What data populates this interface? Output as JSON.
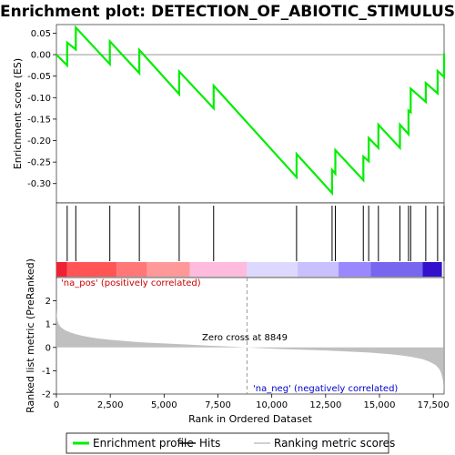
{
  "chart_data": {
    "type": "line",
    "title": "Enrichment plot: DETECTION_OF_ABIOTIC_STIMULUS",
    "es_panel": {
      "ylabel": "Enrichment score (ES)",
      "ylim": [
        -0.345,
        0.07
      ],
      "yticks": [
        0.05,
        0.0,
        -0.05,
        -0.1,
        -0.15,
        -0.2,
        -0.25,
        -0.3
      ],
      "ytick_labels": [
        "0.05",
        "0.00",
        "-0.05",
        "-0.10",
        "-0.15",
        "-0.20",
        "-0.25",
        "-0.30"
      ],
      "line_color": "#00ee00",
      "series": [
        {
          "x": [
            0,
            500,
            500,
            900,
            900,
            2480,
            2480,
            3850,
            3850,
            5700,
            5700,
            7300,
            7300,
            11150,
            11150,
            12800,
            12800,
            12950,
            12950,
            14250,
            14250,
            14500,
            14500,
            14950,
            14950,
            15950,
            15950,
            16350,
            16350,
            16450,
            16450,
            17150,
            17150,
            17700,
            17700,
            18000,
            18000
          ],
          "y": [
            0.0,
            -0.025,
            0.028,
            0.012,
            0.063,
            -0.022,
            0.031,
            -0.043,
            0.011,
            -0.092,
            -0.039,
            -0.125,
            -0.072,
            -0.285,
            -0.231,
            -0.322,
            -0.268,
            -0.277,
            -0.222,
            -0.292,
            -0.237,
            -0.248,
            -0.194,
            -0.217,
            -0.163,
            -0.217,
            -0.163,
            -0.185,
            -0.13,
            -0.134,
            -0.079,
            -0.11,
            -0.066,
            -0.09,
            -0.038,
            -0.052,
            0.003
          ]
        }
      ]
    },
    "hits_panel": {
      "hit_positions": [
        500,
        900,
        2480,
        3850,
        5700,
        7300,
        11150,
        12800,
        12950,
        14250,
        14500,
        14950,
        15950,
        16350,
        16450,
        17150,
        17700,
        18000
      ],
      "gradient_segments": [
        {
          "start": 0,
          "end": 500,
          "color": "#ee2233"
        },
        {
          "start": 500,
          "end": 2800,
          "color": "#ff5555"
        },
        {
          "start": 2800,
          "end": 4200,
          "color": "#ff7777"
        },
        {
          "start": 4200,
          "end": 6200,
          "color": "#ff9999"
        },
        {
          "start": 6200,
          "end": 8849,
          "color": "#ffbbdd"
        },
        {
          "start": 8849,
          "end": 11200,
          "color": "#ddd8ff"
        },
        {
          "start": 11200,
          "end": 13100,
          "color": "#c8c0ff"
        },
        {
          "start": 13100,
          "end": 14600,
          "color": "#9988ff"
        },
        {
          "start": 14600,
          "end": 17000,
          "color": "#7766ee"
        },
        {
          "start": 17000,
          "end": 17900,
          "color": "#3311cc"
        }
      ]
    },
    "metric_panel": {
      "ylabel": "Ranked list metric (PreRanked)",
      "ylim": [
        -2,
        3
      ],
      "yticks": [
        2,
        1,
        0,
        -1,
        -2
      ],
      "ytick_labels": [
        "2",
        "1",
        "0",
        "-1",
        "-2"
      ],
      "fill_color": "#c0c0c0",
      "curve": {
        "x": [
          0,
          20,
          60,
          120,
          200,
          300,
          400,
          500,
          700,
          900,
          1200,
          1600,
          2000,
          2500,
          3000,
          3500,
          4000,
          5000,
          6000,
          7000,
          8000,
          8849,
          9500,
          10500,
          11500,
          12500,
          13500,
          14500,
          15500,
          16000,
          16500,
          17000,
          17300,
          17600,
          17750,
          17850,
          17950,
          17990
        ],
        "y": [
          1.65,
          1.35,
          1.12,
          0.98,
          0.88,
          0.8,
          0.74,
          0.7,
          0.63,
          0.57,
          0.5,
          0.43,
          0.38,
          0.33,
          0.29,
          0.25,
          0.22,
          0.17,
          0.13,
          0.08,
          0.04,
          0.0,
          -0.03,
          -0.07,
          -0.1,
          -0.13,
          -0.17,
          -0.22,
          -0.29,
          -0.34,
          -0.41,
          -0.5,
          -0.6,
          -0.75,
          -0.9,
          -1.05,
          -1.4,
          -1.85
        ]
      },
      "zero_cross_label": "Zero cross at 8849",
      "zero_cross": 8849,
      "pos_label": "'na_pos' (positively correlated)",
      "pos_color": "#cc0000",
      "neg_label": "'na_neg' (negatively correlated)",
      "neg_color": "#0000cc"
    },
    "xlabel": "Rank in Ordered Dataset",
    "xlim": [
      0,
      18000
    ],
    "xticks": [
      0,
      2500,
      5000,
      7500,
      10000,
      12500,
      15000,
      17500
    ],
    "xtick_labels": [
      "0",
      "2,500",
      "5,000",
      "7,500",
      "10,000",
      "12,500",
      "15,000",
      "17,500"
    ],
    "legend": [
      {
        "label": "Enrichment profile",
        "color": "#00ee00",
        "kind": "line"
      },
      {
        "label": "Hits",
        "color": "#000000",
        "kind": "line"
      },
      {
        "label": "Ranking metric scores",
        "color": "#c0c0c0",
        "kind": "line"
      }
    ]
  }
}
